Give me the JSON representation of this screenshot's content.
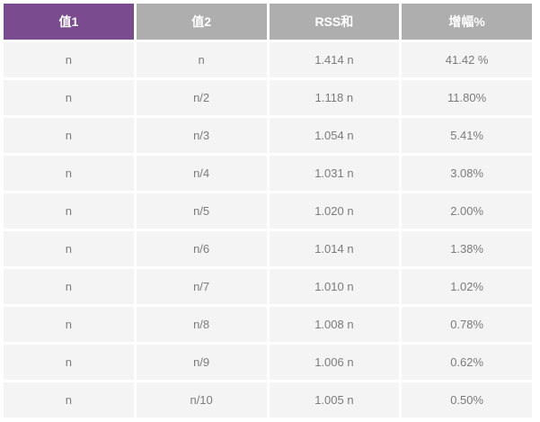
{
  "chart_data": {
    "type": "table",
    "title": "",
    "columns": [
      {
        "label": "值1",
        "active": true
      },
      {
        "label": "值2",
        "active": false
      },
      {
        "label": "RSS和",
        "active": false
      },
      {
        "label": "增幅%",
        "active": false
      }
    ],
    "rows": [
      [
        "n",
        "n",
        "1.414 n",
        "41.42 %"
      ],
      [
        "n",
        "n/2",
        "1.118 n",
        "11.80%"
      ],
      [
        "n",
        "n/3",
        "1.054 n",
        "5.41%"
      ],
      [
        "n",
        "n/4",
        "1.031 n",
        "3.08%"
      ],
      [
        "n",
        "n/5",
        "1.020 n",
        "2.00%"
      ],
      [
        "n",
        "n/6",
        "1.014 n",
        "1.38%"
      ],
      [
        "n",
        "n/7",
        "1.010 n",
        "1.02%"
      ],
      [
        "n",
        "n/8",
        "1.008 n",
        "0.78%"
      ],
      [
        "n",
        "n/9",
        "1.006 n",
        "0.62%"
      ],
      [
        "n",
        "n/10",
        "1.005 n",
        "0.50%"
      ]
    ]
  },
  "colors": {
    "active_header_bg": "#7a4b8f",
    "header_bg": "#aeaeae",
    "header_text": "#ffffff",
    "row_bg": "#f4f4f4",
    "cell_text": "#7b7b7b",
    "page_bg": "#ffffff"
  }
}
